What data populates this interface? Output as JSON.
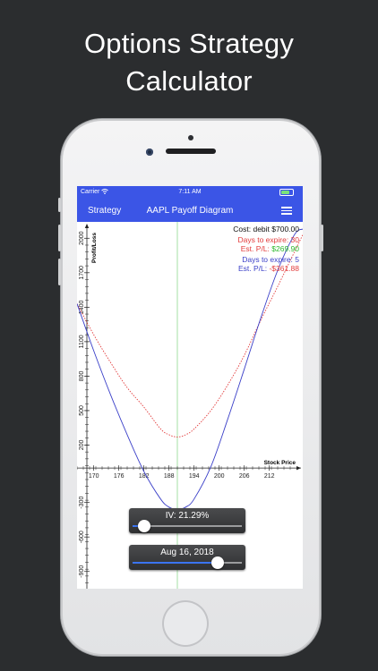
{
  "headline": {
    "line1": "Options Strategy",
    "line2": "Calculator"
  },
  "status_bar": {
    "carrier": "Carrier",
    "time": "7:11 AM"
  },
  "nav_bar": {
    "back_label": "Strategy",
    "title": "AAPL Payoff Diagram",
    "menu_icon": "list-icon"
  },
  "info": {
    "cost": "Cost: debit $700.00",
    "series_a_days": "Days to expire: 30",
    "series_a_pl_label": "Est. P/L: ",
    "series_a_pl_value": "$269.90",
    "series_b_days": "Days to expire: 5",
    "series_b_pl_label": "Est. P/L: ",
    "series_b_pl_value": "-$361.88"
  },
  "colors": {
    "nav": "#3b55e6",
    "series_a": "#e23c3c",
    "series_b": "#3a3fc8",
    "profit": "#2eb82e",
    "current_price": "#8fd88f"
  },
  "controls": {
    "iv_label": "IV: 21.29%",
    "iv_value": 0.11,
    "date_label": "Aug 16, 2018",
    "date_value": 0.78
  },
  "chart_data": {
    "type": "line",
    "xlabel": "Stock Price",
    "ylabel": "Profit/Loss",
    "xlim": [
      166,
      220
    ],
    "ylim": [
      -1050,
      2080
    ],
    "x_ticks": [
      170,
      176,
      182,
      188,
      194,
      200,
      206,
      212
    ],
    "y_ticks": [
      2000,
      1700,
      1400,
      1100,
      800,
      500,
      200,
      -300,
      -600,
      -900
    ],
    "current_price": 190,
    "series": [
      {
        "name": "Days to expire: 30",
        "style": "dotted",
        "x": [
          166,
          170,
          174,
          178,
          182,
          186,
          188,
          190,
          192,
          194,
          198,
          202,
          206,
          210,
          214,
          218,
          220
        ],
        "y": [
          1430,
          1160,
          920,
          700,
          530,
          340,
          290,
          270,
          290,
          340,
          500,
          720,
          980,
          1290,
          1580,
          1880,
          2030
        ]
      },
      {
        "name": "Days to expire: 5",
        "style": "solid",
        "x": [
          166,
          170,
          174,
          178,
          182,
          186,
          188,
          190,
          192,
          194,
          198,
          202,
          206,
          210,
          214,
          218,
          220
        ],
        "y": [
          1430,
          1020,
          640,
          290,
          -30,
          -270,
          -340,
          -362,
          -340,
          -270,
          10,
          420,
          860,
          1310,
          1720,
          2030,
          2080
        ]
      }
    ]
  }
}
